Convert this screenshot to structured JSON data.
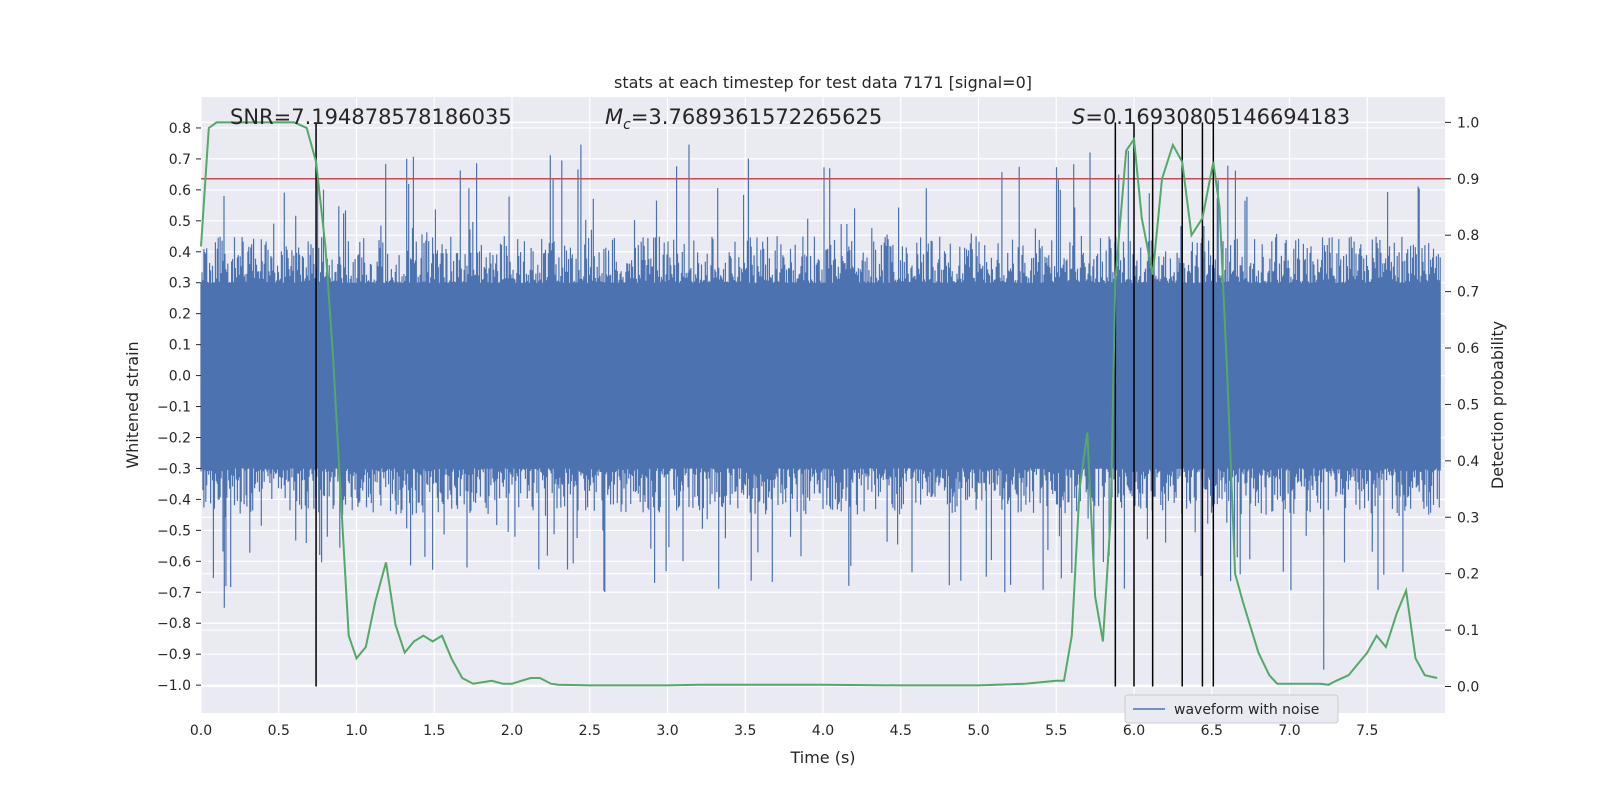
{
  "chart_data": {
    "type": "line",
    "title": "stats at each timestep for test data 7171 [signal=0]",
    "xlabel": "Time (s)",
    "ylabel": "Whitened strain",
    "y2label": "Detection probability",
    "xlim": [
      0.0,
      8.0
    ],
    "ylim": [
      -1.09,
      0.9
    ],
    "y2lim": [
      -0.047,
      1.045
    ],
    "xticks": [
      "0.0",
      "0.5",
      "1.0",
      "1.5",
      "2.0",
      "2.5",
      "3.0",
      "3.5",
      "4.0",
      "4.5",
      "5.0",
      "5.5",
      "6.0",
      "6.5",
      "7.0",
      "7.5"
    ],
    "yticks": [
      "0.8",
      "0.7",
      "0.6",
      "0.5",
      "0.4",
      "0.3",
      "0.2",
      "0.1",
      "0.0",
      "−0.1",
      "−0.2",
      "−0.3",
      "−0.4",
      "−0.5",
      "−0.6",
      "−0.7",
      "−0.8",
      "−0.9",
      "−1.0"
    ],
    "y2ticks": [
      "1.0",
      "0.9",
      "0.8",
      "0.7",
      "0.6",
      "0.5",
      "0.4",
      "0.3",
      "0.2",
      "0.1",
      "0.0"
    ],
    "grid": true,
    "annotations": {
      "snr": "SNR=7.194878578186035",
      "mc_symbol": "M",
      "mc_sub": "c",
      "mc_value": "=3.7689361572265625",
      "s_symbol": "S",
      "s_value": "=0.16930805146694183"
    },
    "threshold": 0.9,
    "detection_markers": [
      0.74,
      5.88,
      6.0,
      6.12,
      6.31,
      6.44,
      6.51
    ],
    "series": [
      {
        "name": "waveform with noise",
        "color": "#4c72b0",
        "envelope_min": -0.95,
        "envelope_max": 0.8
      },
      {
        "name": "detection probability",
        "color": "#55a868",
        "axis": "right",
        "x": [
          0.0,
          0.05,
          0.1,
          0.15,
          0.2,
          0.3,
          0.4,
          0.5,
          0.6,
          0.68,
          0.74,
          0.8,
          0.85,
          0.9,
          0.95,
          1.0,
          1.06,
          1.12,
          1.19,
          1.25,
          1.31,
          1.37,
          1.43,
          1.49,
          1.55,
          1.61,
          1.68,
          1.75,
          1.87,
          1.94,
          2.0,
          2.06,
          2.12,
          2.18,
          2.25,
          2.3,
          2.5,
          3.0,
          3.2,
          3.5,
          4.0,
          4.5,
          5.0,
          5.3,
          5.5,
          5.55,
          5.6,
          5.65,
          5.7,
          5.75,
          5.8,
          5.85,
          5.88,
          5.95,
          6.0,
          6.05,
          6.12,
          6.18,
          6.25,
          6.31,
          6.37,
          6.44,
          6.51,
          6.55,
          6.6,
          6.65,
          6.7,
          6.8,
          6.87,
          6.92,
          7.0,
          7.1,
          7.2,
          7.25,
          7.3,
          7.38,
          7.44,
          7.5,
          7.56,
          7.62,
          7.69,
          7.75,
          7.81,
          7.87,
          7.95
        ],
        "values": [
          0.78,
          0.99,
          1.0,
          1.0,
          1.0,
          1.0,
          1.0,
          1.0,
          1.0,
          0.99,
          0.93,
          0.78,
          0.58,
          0.33,
          0.09,
          0.05,
          0.07,
          0.15,
          0.22,
          0.11,
          0.06,
          0.08,
          0.09,
          0.08,
          0.09,
          0.05,
          0.015,
          0.005,
          0.01,
          0.005,
          0.005,
          0.01,
          0.015,
          0.015,
          0.005,
          0.003,
          0.002,
          0.002,
          0.003,
          0.003,
          0.003,
          0.002,
          0.002,
          0.005,
          0.01,
          0.01,
          0.09,
          0.35,
          0.45,
          0.16,
          0.08,
          0.3,
          0.72,
          0.95,
          0.97,
          0.83,
          0.73,
          0.9,
          0.96,
          0.93,
          0.8,
          0.83,
          0.93,
          0.85,
          0.55,
          0.2,
          0.15,
          0.06,
          0.02,
          0.005,
          0.005,
          0.005,
          0.005,
          0.003,
          0.01,
          0.02,
          0.04,
          0.06,
          0.09,
          0.07,
          0.13,
          0.17,
          0.05,
          0.02,
          0.015
        ]
      }
    ]
  }
}
